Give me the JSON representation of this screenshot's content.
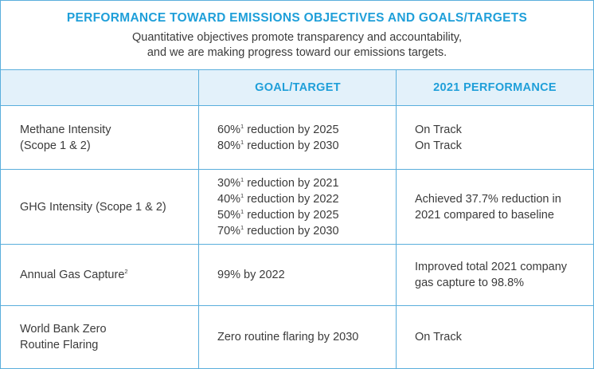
{
  "header": {
    "title": "PERFORMANCE TOWARD EMISSIONS OBJECTIVES AND GOALS/TARGETS",
    "subtitle_lines": [
      "Quantitative objectives promote transparency and accountability,",
      "and we are making progress toward our emissions targets."
    ]
  },
  "table": {
    "columns": [
      "",
      "GOAL/TARGET",
      "2021 PERFORMANCE"
    ],
    "rows": [
      {
        "metric": [
          "Methane Intensity",
          "(Scope 1 & 2)"
        ],
        "metric_sup": "",
        "goals": [
          {
            "text": "60%",
            "sup": "1",
            "rest": " reduction by 2025"
          },
          {
            "text": "80%",
            "sup": "1",
            "rest": " reduction by 2030"
          }
        ],
        "performance": [
          "On Track",
          "On Track"
        ]
      },
      {
        "metric": [
          "GHG Intensity (Scope 1 & 2)"
        ],
        "metric_sup": "",
        "goals": [
          {
            "text": "30%",
            "sup": "1",
            "rest": " reduction by 2021"
          },
          {
            "text": "40%",
            "sup": "1",
            "rest": " reduction by 2022"
          },
          {
            "text": "50%",
            "sup": "1",
            "rest": " reduction by 2025"
          },
          {
            "text": "70%",
            "sup": "1",
            "rest": " reduction by 2030"
          }
        ],
        "performance": [
          "Achieved 37.7% reduction in",
          "2021 compared to baseline"
        ]
      },
      {
        "metric": [
          "Annual Gas Capture"
        ],
        "metric_sup": "2",
        "goals": [
          {
            "text": "99% by 2022",
            "sup": "",
            "rest": ""
          }
        ],
        "performance": [
          "Improved total 2021 company",
          "gas capture to 98.8%"
        ]
      },
      {
        "metric": [
          "World Bank Zero",
          "Routine Flaring"
        ],
        "metric_sup": "",
        "goals": [
          {
            "text": "Zero routine flaring by 2030",
            "sup": "",
            "rest": ""
          }
        ],
        "performance": [
          "On Track"
        ]
      }
    ]
  },
  "colors": {
    "accent": "#1f9fd9",
    "border": "#5aaedc",
    "header_fill": "#e3f1fa",
    "text": "#3b3b3b"
  }
}
